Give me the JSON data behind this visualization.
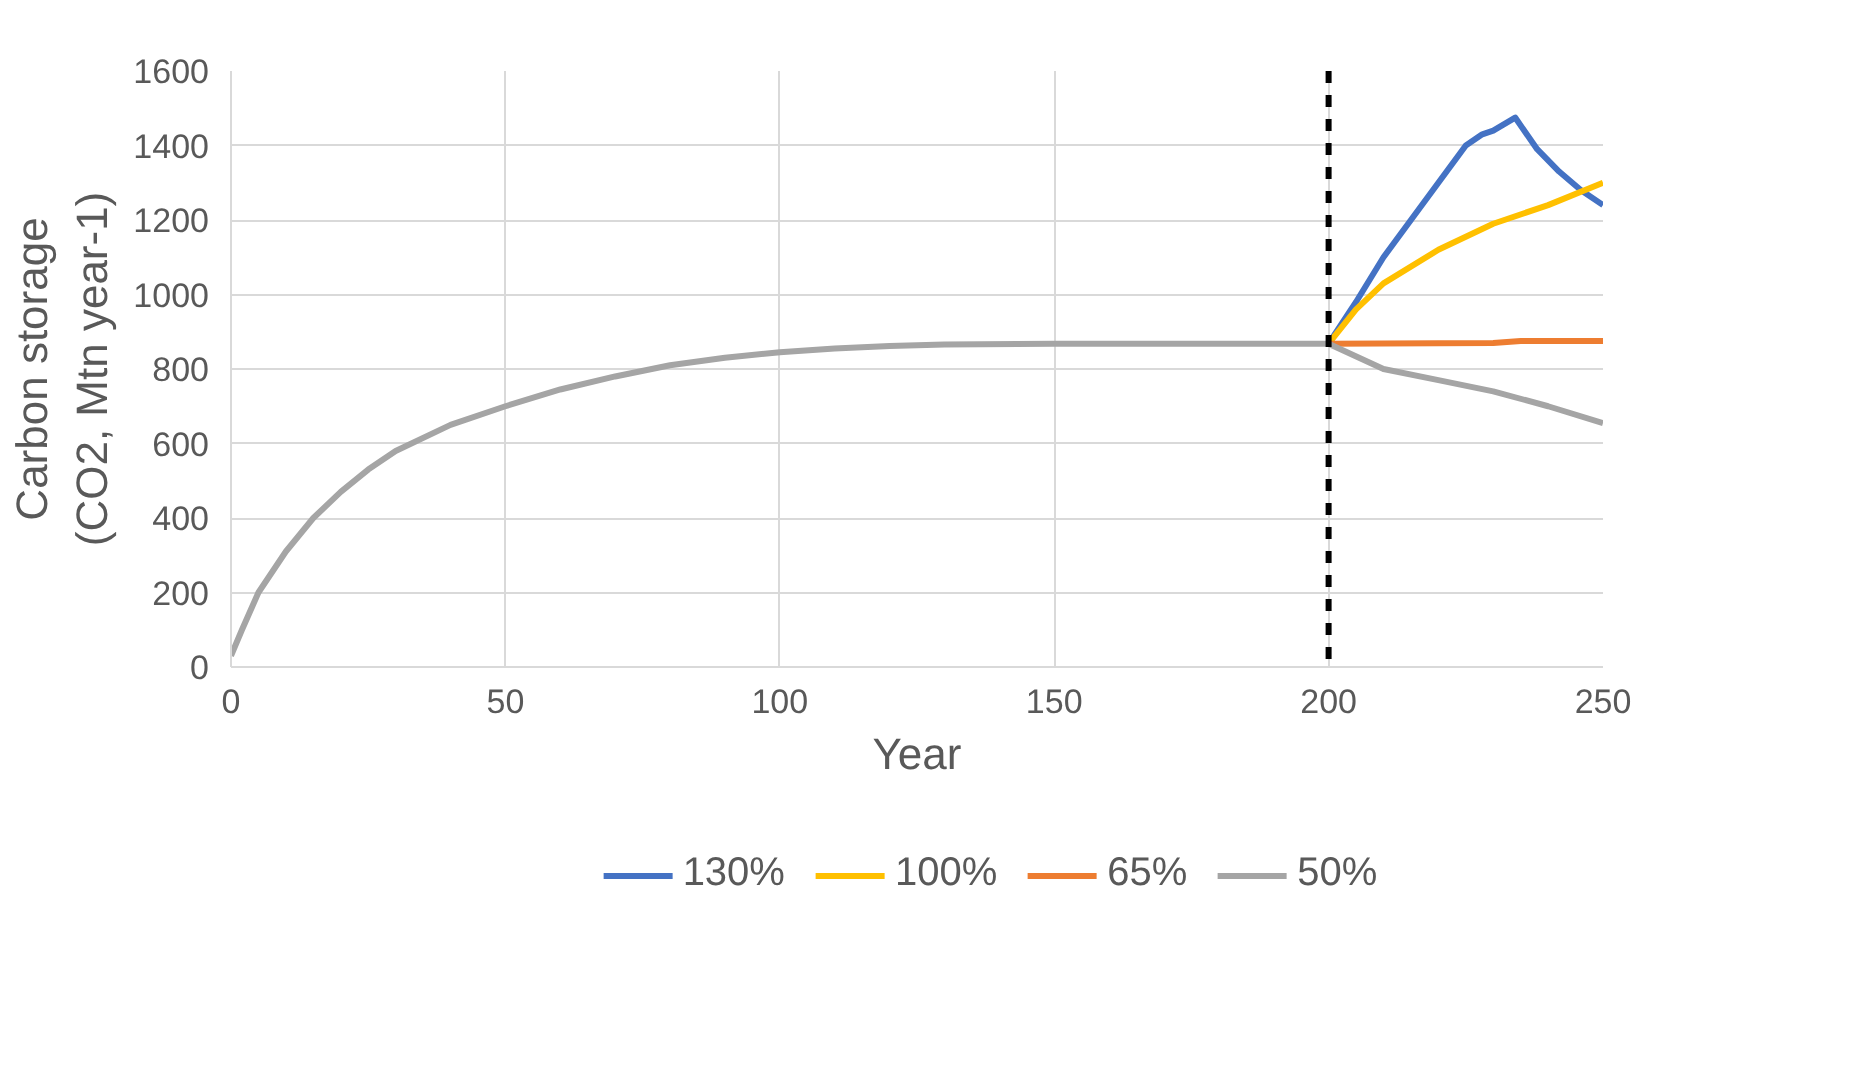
{
  "chart_data": {
    "type": "line",
    "xlabel": "Year",
    "ylabel": "Carbon storage\n(CO2, Mtn year-1)",
    "xlim": [
      0,
      250
    ],
    "xticks": [
      0,
      50,
      100,
      150,
      200,
      250
    ],
    "ylim": [
      0,
      1600
    ],
    "yticks": [
      0,
      200,
      400,
      600,
      800,
      1000,
      1200,
      1400,
      1600
    ],
    "grid": true,
    "legend": "bottom",
    "marker": "none",
    "ref_lines": [
      {
        "axis": "x",
        "value": 200,
        "label": null,
        "color": "#000000",
        "line_style": "dashed"
      }
    ],
    "series": [
      {
        "name": "130%",
        "color": "#4472c4",
        "x": [
          200,
          205,
          210,
          215,
          220,
          225,
          228,
          230,
          234,
          238,
          242,
          246,
          250
        ],
        "values": [
          868,
          980,
          1100,
          1200,
          1300,
          1400,
          1430,
          1440,
          1475,
          1390,
          1330,
          1280,
          1240
        ]
      },
      {
        "name": "100%",
        "color": "#ffc000",
        "x": [
          200,
          205,
          210,
          220,
          230,
          240,
          250
        ],
        "values": [
          868,
          960,
          1030,
          1120,
          1190,
          1240,
          1300
        ]
      },
      {
        "name": "65%",
        "color": "#ed7d31",
        "x": [
          200,
          230,
          235,
          250
        ],
        "values": [
          868,
          870,
          875,
          875
        ]
      },
      {
        "name": "50%",
        "color": "#a5a5a5",
        "x": [
          0,
          2,
          5,
          10,
          15,
          20,
          25,
          30,
          40,
          50,
          60,
          70,
          80,
          90,
          100,
          110,
          120,
          130,
          150,
          200,
          210,
          220,
          230,
          240,
          250
        ],
        "values": [
          30,
          100,
          200,
          310,
          400,
          470,
          530,
          580,
          650,
          700,
          745,
          780,
          810,
          830,
          845,
          855,
          862,
          866,
          868,
          868,
          800,
          770,
          740,
          700,
          655
        ]
      }
    ]
  }
}
